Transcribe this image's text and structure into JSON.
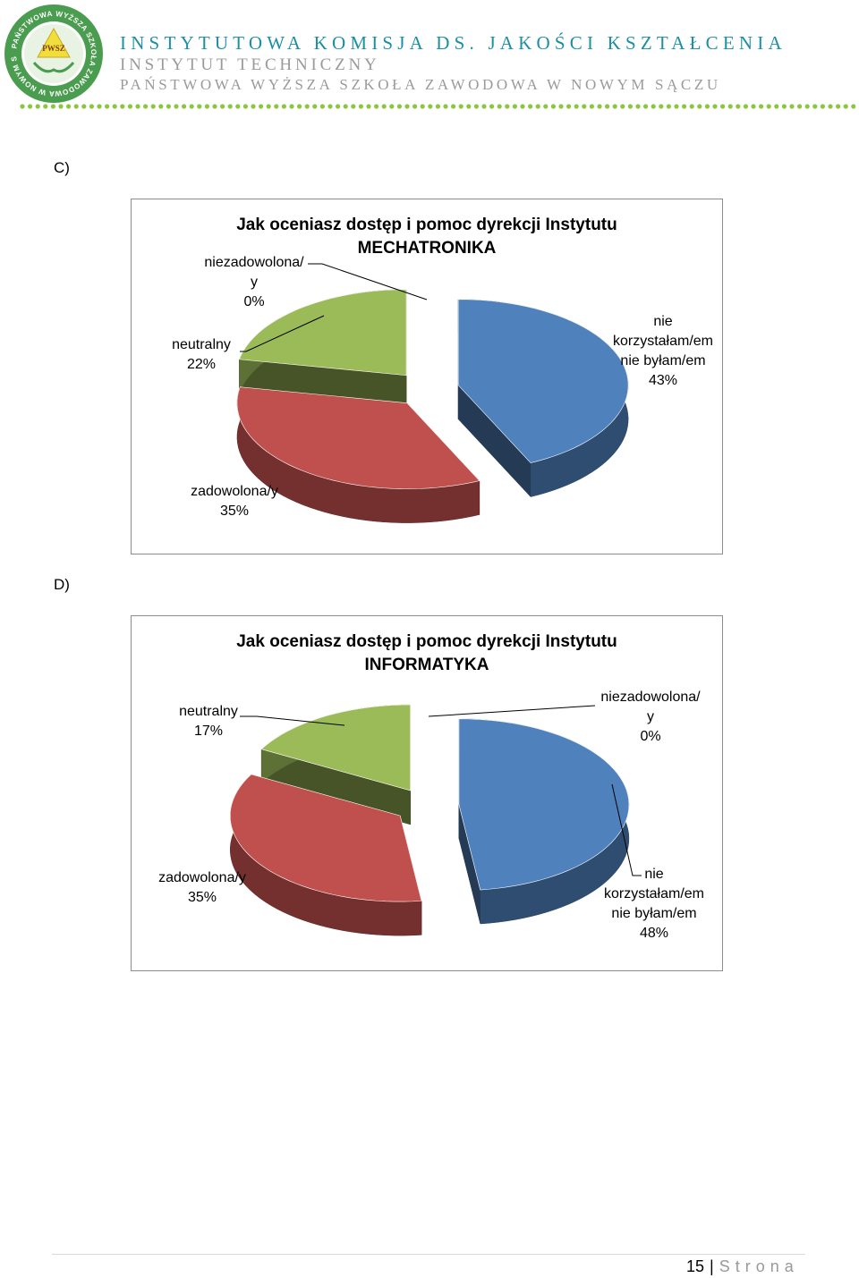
{
  "header": {
    "logo": {
      "ring_text": "PAŃSTWOWA WYŻSZA SZKOŁA ZAWODOWA W NOWYM SĄCZU",
      "badge": "PWSZ"
    },
    "line1": "INSTYTUTOWA KOMISJA DS. JAKOŚCI KSZTAŁCENIA",
    "line2": "INSTYTUT TECHNICZNY",
    "line3": "PAŃSTWOWA WYŻSZA SZKOŁA ZAWODOWA W NOWYM SĄCZU",
    "colors": {
      "title": "#1b8fa6",
      "sub": "#9a9a9a",
      "dots": "#8cc63f"
    }
  },
  "sections": [
    {
      "label": "C)"
    },
    {
      "label": "D)"
    }
  ],
  "chart_data": [
    {
      "type": "pie",
      "title_lines": [
        "Jak oceniasz dostęp i pomoc dyrekcji Instytutu",
        "MECHATRONIKA"
      ],
      "slices": [
        {
          "key": "nie_korzystal",
          "label_lines": [
            "nie",
            "korzystałam/em",
            "nie byłam/em"
          ],
          "value": 43,
          "pct": "43%",
          "color": "#4f81bd"
        },
        {
          "key": "zadowolona",
          "label_lines": [
            "zadowolona/y"
          ],
          "value": 35,
          "pct": "35%",
          "color": "#c0504d"
        },
        {
          "key": "neutralny",
          "label_lines": [
            "neutralny"
          ],
          "value": 22,
          "pct": "22%",
          "color": "#9bbb59"
        },
        {
          "key": "niezadowolona",
          "label_lines": [
            "niezadowolona/",
            "y"
          ],
          "value": 0,
          "pct": "0%",
          "color": "#8064a2"
        }
      ]
    },
    {
      "type": "pie",
      "title_lines": [
        "Jak oceniasz dostęp i pomoc dyrekcji Instytutu",
        "INFORMATYKA"
      ],
      "slices": [
        {
          "key": "nie_korzystal",
          "label_lines": [
            "nie",
            "korzystałam/em",
            "nie byłam/em"
          ],
          "value": 48,
          "pct": "48%",
          "color": "#4f81bd"
        },
        {
          "key": "zadowolona",
          "label_lines": [
            "zadowolona/y"
          ],
          "value": 35,
          "pct": "35%",
          "color": "#c0504d"
        },
        {
          "key": "neutralny",
          "label_lines": [
            "neutralny"
          ],
          "value": 17,
          "pct": "17%",
          "color": "#9bbb59"
        },
        {
          "key": "niezadowolona",
          "label_lines": [
            "niezadowolona/",
            "y"
          ],
          "value": 0,
          "pct": "0%",
          "color": "#8064a2"
        }
      ]
    }
  ],
  "footer": {
    "page": "15",
    "separator": "|",
    "word": "Strona"
  }
}
